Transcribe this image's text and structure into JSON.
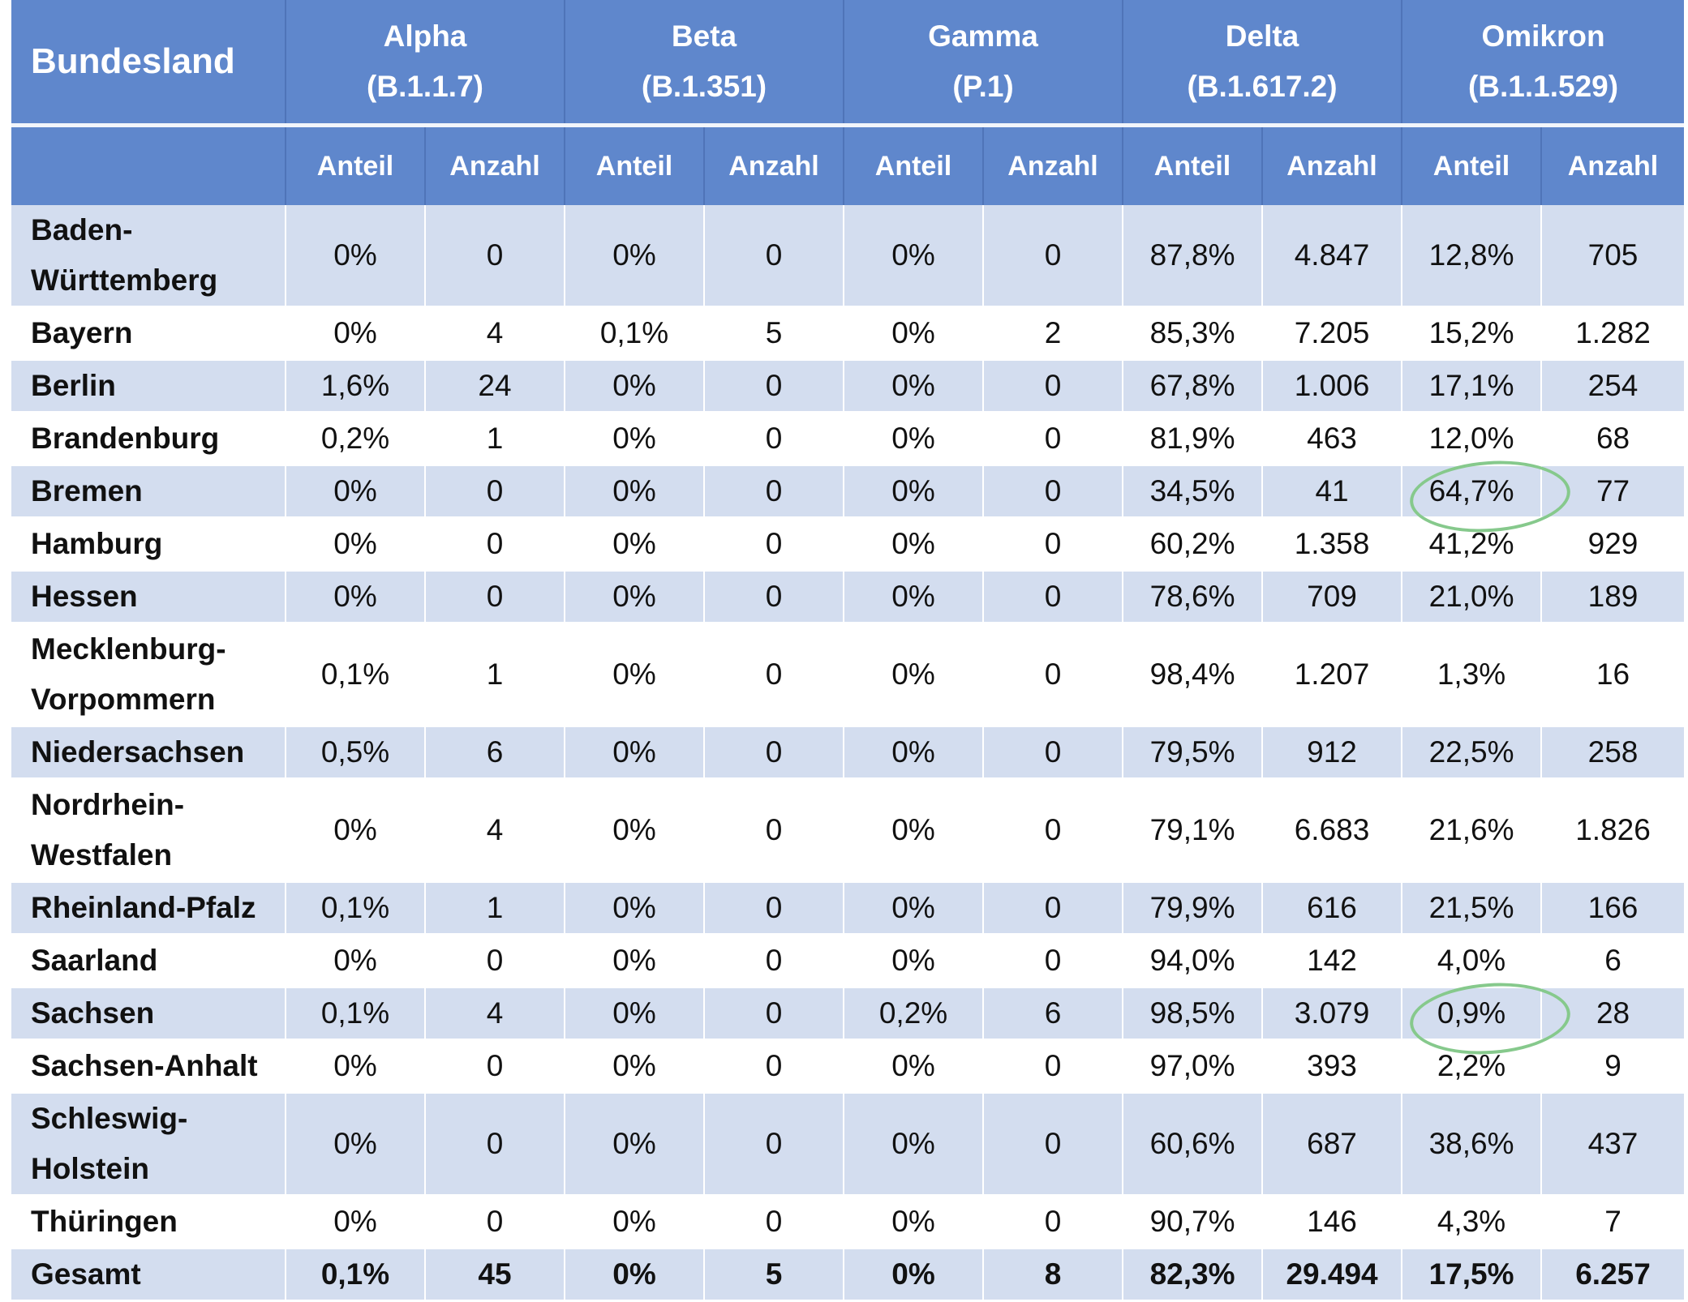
{
  "header": {
    "state_label": "Bundesland",
    "variants": [
      {
        "name": "Alpha",
        "lineage": "(B.1.1.7)"
      },
      {
        "name": "Beta",
        "lineage": "(B.1.351)"
      },
      {
        "name": "Gamma",
        "lineage": "(P.1)"
      },
      {
        "name": "Delta",
        "lineage": "(B.1.617.2)"
      },
      {
        "name": "Omikron",
        "lineage": "(B.1.1.529)"
      }
    ],
    "share_label": "Anteil",
    "count_label": "Anzahl"
  },
  "rows": [
    {
      "state": "Baden-Württemberg",
      "values": [
        "0%",
        "0",
        "0%",
        "0",
        "0%",
        "0",
        "87,8%",
        "4.847",
        "12,8%",
        "705"
      ]
    },
    {
      "state": "Bayern",
      "values": [
        "0%",
        "4",
        "0,1%",
        "5",
        "0%",
        "2",
        "85,3%",
        "7.205",
        "15,2%",
        "1.282"
      ]
    },
    {
      "state": "Berlin",
      "values": [
        "1,6%",
        "24",
        "0%",
        "0",
        "0%",
        "0",
        "67,8%",
        "1.006",
        "17,1%",
        "254"
      ]
    },
    {
      "state": "Brandenburg",
      "values": [
        "0,2%",
        "1",
        "0%",
        "0",
        "0%",
        "0",
        "81,9%",
        "463",
        "12,0%",
        "68"
      ]
    },
    {
      "state": "Bremen",
      "values": [
        "0%",
        "0",
        "0%",
        "0",
        "0%",
        "0",
        "34,5%",
        "41",
        "64,7%",
        "77"
      ]
    },
    {
      "state": "Hamburg",
      "values": [
        "0%",
        "0",
        "0%",
        "0",
        "0%",
        "0",
        "60,2%",
        "1.358",
        "41,2%",
        "929"
      ]
    },
    {
      "state": "Hessen",
      "values": [
        "0%",
        "0",
        "0%",
        "0",
        "0%",
        "0",
        "78,6%",
        "709",
        "21,0%",
        "189"
      ]
    },
    {
      "state": "Mecklenburg-Vorpommern",
      "values": [
        "0,1%",
        "1",
        "0%",
        "0",
        "0%",
        "0",
        "98,4%",
        "1.207",
        "1,3%",
        "16"
      ]
    },
    {
      "state": "Niedersachsen",
      "values": [
        "0,5%",
        "6",
        "0%",
        "0",
        "0%",
        "0",
        "79,5%",
        "912",
        "22,5%",
        "258"
      ]
    },
    {
      "state": "Nordrhein-Westfalen",
      "values": [
        "0%",
        "4",
        "0%",
        "0",
        "0%",
        "0",
        "79,1%",
        "6.683",
        "21,6%",
        "1.826"
      ]
    },
    {
      "state": "Rheinland-Pfalz",
      "values": [
        "0,1%",
        "1",
        "0%",
        "0",
        "0%",
        "0",
        "79,9%",
        "616",
        "21,5%",
        "166"
      ]
    },
    {
      "state": "Saarland",
      "values": [
        "0%",
        "0",
        "0%",
        "0",
        "0%",
        "0",
        "94,0%",
        "142",
        "4,0%",
        "6"
      ]
    },
    {
      "state": "Sachsen",
      "values": [
        "0,1%",
        "4",
        "0%",
        "0",
        "0,2%",
        "6",
        "98,5%",
        "3.079",
        "0,9%",
        "28"
      ]
    },
    {
      "state": "Sachsen-Anhalt",
      "values": [
        "0%",
        "0",
        "0%",
        "0",
        "0%",
        "0",
        "97,0%",
        "393",
        "2,2%",
        "9"
      ]
    },
    {
      "state": "Schleswig-Holstein",
      "values": [
        "0%",
        "0",
        "0%",
        "0",
        "0%",
        "0",
        "60,6%",
        "687",
        "38,6%",
        "437"
      ]
    },
    {
      "state": "Thüringen",
      "values": [
        "0%",
        "0",
        "0%",
        "0",
        "0%",
        "0",
        "90,7%",
        "146",
        "4,3%",
        "7"
      ]
    }
  ],
  "total": {
    "state": "Gesamt",
    "values": [
      "0,1%",
      "45",
      "0%",
      "5",
      "0%",
      "8",
      "82,3%",
      "29.494",
      "17,5%",
      "6.257"
    ]
  },
  "annotation_color": "#86c98c"
}
